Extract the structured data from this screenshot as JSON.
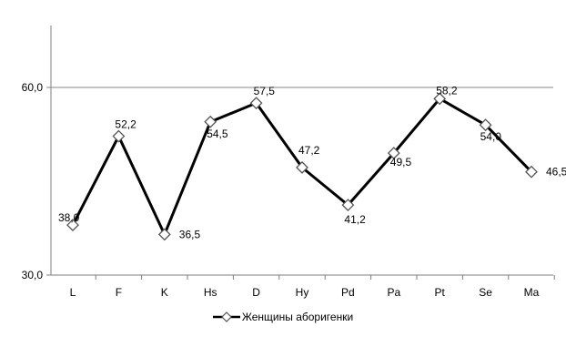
{
  "chart_data": {
    "type": "line",
    "categories": [
      "L",
      "F",
      "K",
      "Hs",
      "D",
      "Hy",
      "Pd",
      "Pa",
      "Pt",
      "Se",
      "Ma"
    ],
    "series": [
      {
        "name": "Женщины аборигенки",
        "values": [
          38.0,
          52.2,
          36.5,
          54.5,
          57.5,
          47.2,
          41.2,
          49.5,
          58.2,
          54.0,
          46.5
        ],
        "labels": [
          "38,0",
          "52,2",
          "36,5",
          "54,5",
          "57,5",
          "47,2",
          "41,2",
          "49,5",
          "58,2",
          "54,0",
          "46,5"
        ],
        "color": "#000000",
        "marker": "diamond"
      }
    ],
    "ylim": [
      30,
      60
    ],
    "yticks": [
      {
        "value": 30,
        "label": "30,0"
      },
      {
        "value": 60,
        "label": "60,0"
      }
    ],
    "grid": true,
    "legend": "bottom",
    "colors": {
      "gridline": "#8a8a8a",
      "axis": "#7f7f7f",
      "series": "#000000",
      "marker_fill": "#ffffff"
    }
  }
}
